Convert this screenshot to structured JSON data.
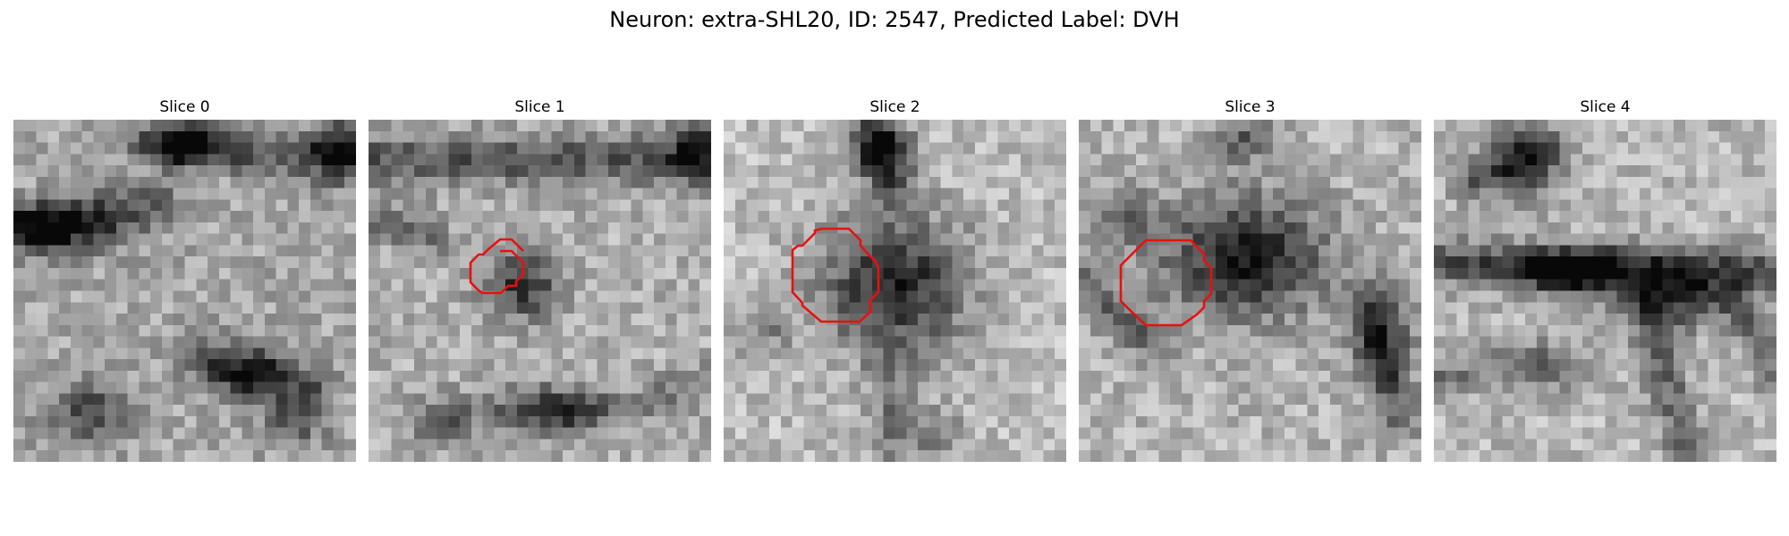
{
  "figure": {
    "title": "Neuron: extra-SHL20, ID: 2547, Predicted Label: DVH"
  },
  "contour_color": "#e81010",
  "slices": [
    {
      "title": "Slice 0"
    },
    {
      "title": "Slice 1"
    },
    {
      "title": "Slice 2"
    },
    {
      "title": "Slice 3"
    },
    {
      "title": "Slice 4"
    }
  ]
}
